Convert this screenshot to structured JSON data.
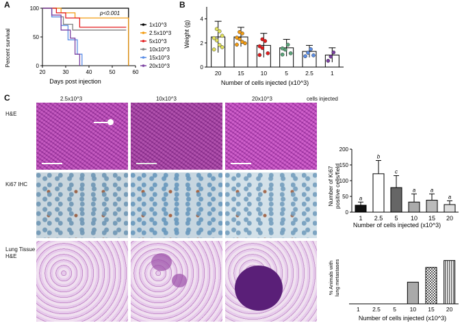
{
  "panels": {
    "a": "A",
    "b": "B",
    "c": "C"
  },
  "colors": {
    "black": "#000000",
    "orange": "#f39c12",
    "red": "#e3191b",
    "gray": "#7f7f7f",
    "blue": "#5b8ee6",
    "purple": "#7a3fa0",
    "yellow": "#f2d21b"
  },
  "survival": {
    "ylabel": "Percent survival",
    "xlabel": "Days post injection",
    "pvalue": "p<0.001",
    "xticks": [
      "20",
      "30",
      "40",
      "50",
      "60"
    ],
    "yticks": [
      "0",
      "50",
      "100"
    ],
    "legend": [
      "1x10^3",
      "2.5x10^3",
      "5x10^3",
      "10x10^3",
      "15x10^3",
      "20x10^3"
    ]
  },
  "weight": {
    "ylabel": "Weight (g)",
    "xlabel": "Number of cells injected (x10^3)",
    "yticks": [
      "0",
      "2",
      "4"
    ],
    "categories": [
      "20",
      "15",
      "10",
      "5",
      "2.5",
      "1"
    ]
  },
  "histology": {
    "cols": [
      "2.5x10^3",
      "10x10^3",
      "20x10^3"
    ],
    "cols_suffix": "cells injected",
    "rows": [
      "H&E",
      "Ki67 IHC",
      "Lung Tissue",
      "H&E"
    ]
  },
  "ki67": {
    "ylabel1": "Number of Ki67",
    "ylabel2": "positive cells/field",
    "xlabel": "Number of cells injected (x10^3)",
    "yticks": [
      "0",
      "50",
      "100",
      "150",
      "200"
    ],
    "categories": [
      "1",
      "2.5",
      "5",
      "10",
      "15",
      "20"
    ],
    "letters": [
      "a",
      "b",
      "c",
      "a",
      "a",
      "a"
    ]
  },
  "mets": {
    "ylabel1": "% Animals with",
    "ylabel2": "lung metastases",
    "xlabel": "Number of cells injected (x10^3)",
    "categories": [
      "1",
      "2.5",
      "5",
      "10",
      "15",
      "20"
    ]
  },
  "chart_data": [
    {
      "type": "line",
      "title": "",
      "xlabel": "Days post injection",
      "ylabel": "Percent survival",
      "xlim": [
        20,
        60
      ],
      "ylim": [
        0,
        100
      ],
      "series": [
        {
          "name": "1x10^3",
          "color": "#000000",
          "x": [
            20,
            57,
            57
          ],
          "y": [
            100,
            100,
            0
          ]
        },
        {
          "name": "2.5x10^3",
          "color": "#f39c12",
          "x": [
            20,
            28,
            28,
            34,
            34,
            57,
            57
          ],
          "y": [
            100,
            100,
            92,
            92,
            83,
            83,
            0
          ]
        },
        {
          "name": "5x10^3",
          "color": "#e3191b",
          "x": [
            20,
            26,
            26,
            30,
            30,
            36,
            36,
            56
          ],
          "y": [
            100,
            100,
            92,
            92,
            83,
            83,
            67,
            67
          ]
        },
        {
          "name": "10x10^3",
          "color": "#7f7f7f",
          "x": [
            20,
            24,
            24,
            29,
            29,
            33,
            33,
            56
          ],
          "y": [
            100,
            100,
            85,
            85,
            72,
            72,
            62,
            62
          ]
        },
        {
          "name": "15x10^3",
          "color": "#5b8ee6",
          "x": [
            20,
            24,
            24,
            28,
            28,
            31,
            31,
            35,
            35,
            37,
            37
          ],
          "y": [
            100,
            100,
            85,
            85,
            70,
            70,
            45,
            45,
            20,
            20,
            0
          ]
        },
        {
          "name": "20x10^3",
          "color": "#7a3fa0",
          "x": [
            20,
            24,
            24,
            28,
            28,
            32,
            32,
            34,
            34,
            36,
            36
          ],
          "y": [
            100,
            100,
            88,
            88,
            62,
            62,
            48,
            48,
            20,
            20,
            0
          ]
        }
      ]
    },
    {
      "type": "bar",
      "title": "",
      "xlabel": "Number of cells injected (x10^3)",
      "ylabel": "Weight (g)",
      "ylim": [
        0,
        5
      ],
      "categories": [
        "20",
        "15",
        "10",
        "5",
        "2.5",
        "1"
      ],
      "values": [
        2.5,
        2.5,
        1.8,
        1.6,
        1.3,
        1.0
      ],
      "errors": [
        1.3,
        0.8,
        1.0,
        0.7,
        0.5,
        0.6
      ],
      "point_colors": [
        "#e0e05a",
        "#f39c12",
        "#e3191b",
        "#5aa57a",
        "#5b8ee6",
        "#7a3fa0"
      ]
    },
    {
      "type": "bar",
      "title": "",
      "xlabel": "Number of cells injected (x10^3)",
      "ylabel": "Number of Ki67 positive cells/field",
      "ylim": [
        0,
        200
      ],
      "categories": [
        "1",
        "2.5",
        "5",
        "10",
        "15",
        "20"
      ],
      "values": [
        22,
        122,
        78,
        32,
        38,
        24
      ],
      "errors": [
        10,
        42,
        38,
        26,
        20,
        12
      ],
      "fills": [
        "#111111",
        "#ffffff",
        "#666666",
        "#aaaaaa",
        "#bbbbbb",
        "#dddddd"
      ]
    },
    {
      "type": "bar",
      "title": "",
      "xlabel": "Number of cells injected (x10^3)",
      "ylabel": "% Animals with lung metastases",
      "ylim": [
        0,
        60
      ],
      "categories": [
        "1",
        "2.5",
        "5",
        "10",
        "15",
        "20"
      ],
      "values": [
        0,
        0,
        0,
        25,
        42,
        50
      ]
    }
  ]
}
